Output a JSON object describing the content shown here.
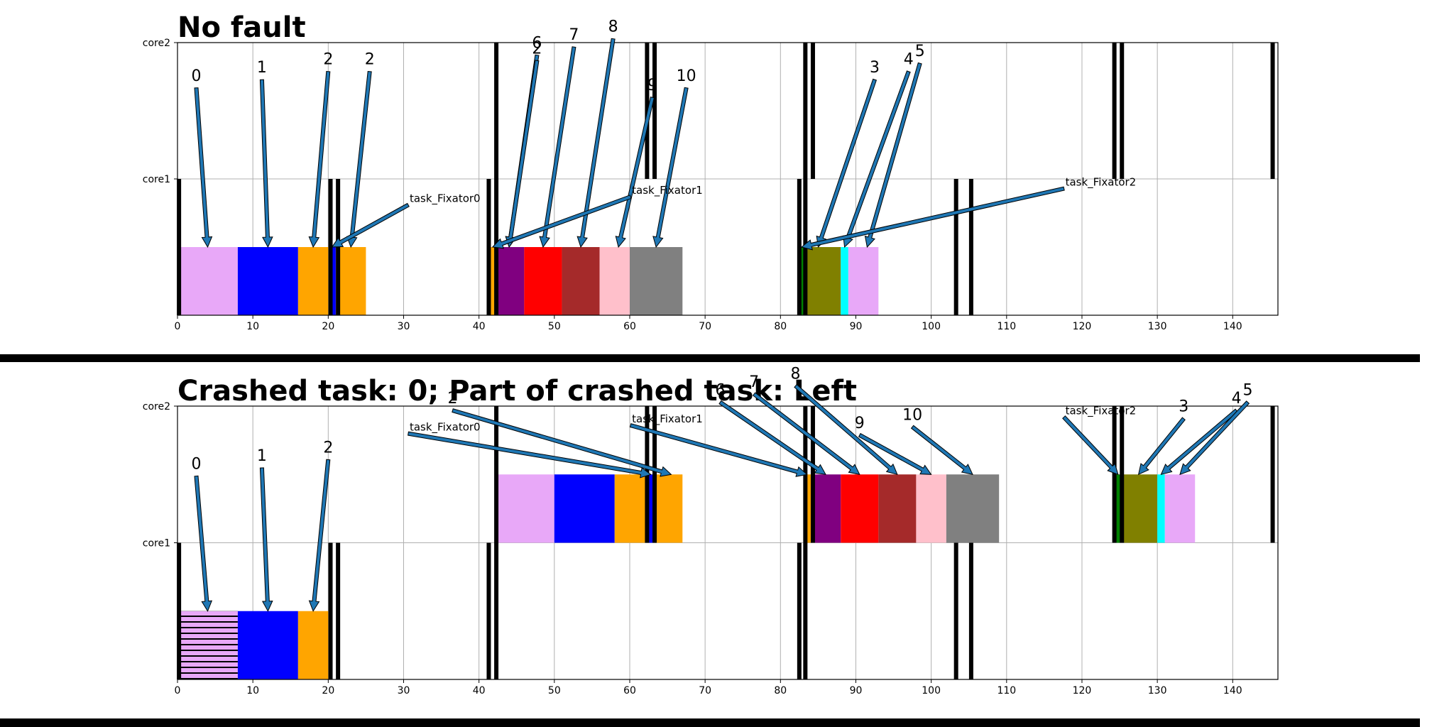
{
  "chart_data": [
    {
      "type": "gantt",
      "title": "No fault",
      "xlim": [
        0,
        146
      ],
      "xticks": [
        0,
        10,
        20,
        30,
        40,
        50,
        60,
        70,
        80,
        90,
        100,
        110,
        120,
        130,
        140
      ],
      "cores": [
        "core1",
        "core2"
      ],
      "grid": true,
      "tasks": [
        {
          "core": 1,
          "start": 0,
          "end": 8,
          "color": "#e8a8f8"
        },
        {
          "core": 1,
          "start": 8,
          "end": 16,
          "color": "#0000ff"
        },
        {
          "core": 1,
          "start": 16,
          "end": 20,
          "color": "#ffa500"
        },
        {
          "core": 1,
          "start": 20.3,
          "end": 21,
          "color": "#0000ff"
        },
        {
          "core": 1,
          "start": 21,
          "end": 25,
          "color": "#ffa500"
        },
        {
          "core": 1,
          "start": 41.5,
          "end": 42.3,
          "color": "#ffa500"
        },
        {
          "core": 1,
          "start": 42.3,
          "end": 46,
          "color": "#800080"
        },
        {
          "core": 1,
          "start": 46,
          "end": 51,
          "color": "#ff0000"
        },
        {
          "core": 1,
          "start": 51,
          "end": 56,
          "color": "#a52a2a"
        },
        {
          "core": 1,
          "start": 56,
          "end": 60,
          "color": "#ffc0cb"
        },
        {
          "core": 1,
          "start": 60,
          "end": 67,
          "color": "#808080"
        },
        {
          "core": 1,
          "start": 82.5,
          "end": 83.3,
          "color": "#008000"
        },
        {
          "core": 1,
          "start": 83.3,
          "end": 88,
          "color": "#808000"
        },
        {
          "core": 1,
          "start": 88,
          "end": 89,
          "color": "#00ffff"
        },
        {
          "core": 1,
          "start": 89,
          "end": 93,
          "color": "#e8a8f8"
        }
      ],
      "markers": [
        {
          "core": 1,
          "x": 0.2
        },
        {
          "core": 1,
          "x": 20.3
        },
        {
          "core": 1,
          "x": 21.3
        },
        {
          "core": 1,
          "x": 41.3
        },
        {
          "core": 1,
          "x": 42.3
        },
        {
          "core": 1,
          "x": 82.5
        },
        {
          "core": 1,
          "x": 83.3
        },
        {
          "core": 1,
          "x": 103.3
        },
        {
          "core": 1,
          "x": 105.3
        },
        {
          "core": 2,
          "x": 42.3
        },
        {
          "core": 2,
          "x": 62.3
        },
        {
          "core": 2,
          "x": 63.3
        },
        {
          "core": 2,
          "x": 83.3
        },
        {
          "core": 2,
          "x": 84.3
        },
        {
          "core": 2,
          "x": 124.3
        },
        {
          "core": 2,
          "x": 125.3
        },
        {
          "core": 2,
          "x": 145.3
        }
      ],
      "annotations": [
        {
          "text": "0",
          "size": "large",
          "tx": 2.5,
          "ty": 1.72,
          "ax": 4,
          "ay": 0.5
        },
        {
          "text": "1",
          "size": "large",
          "tx": 11.2,
          "ty": 1.78,
          "ax": 12,
          "ay": 0.5
        },
        {
          "text": "2",
          "size": "large",
          "tx": 20,
          "ty": 1.84,
          "ax": 18,
          "ay": 0.5
        },
        {
          "text": "2",
          "size": "large",
          "tx": 25.5,
          "ty": 1.84,
          "ax": 23,
          "ay": 0.5
        },
        {
          "text": "task_Fixator0",
          "size": "small",
          "tx": 30.8,
          "ty": 0.83,
          "ax": 20.5,
          "ay": 0.5
        },
        {
          "text": "6",
          "size": "large",
          "tx": 47.7,
          "ty": 1.96,
          "ax": 44,
          "ay": 0.5
        },
        {
          "text": "2",
          "size": "large",
          "tx": 47.7,
          "ty": 1.92,
          "ax": 44,
          "ay": 0.5
        },
        {
          "text": "7",
          "size": "large",
          "tx": 52.6,
          "ty": 2.02,
          "ax": 48.5,
          "ay": 0.5
        },
        {
          "text": "8",
          "size": "large",
          "tx": 57.8,
          "ty": 2.08,
          "ax": 53.5,
          "ay": 0.5
        },
        {
          "text": "9",
          "size": "large",
          "tx": 63,
          "ty": 1.65,
          "ax": 58.5,
          "ay": 0.5
        },
        {
          "text": "10",
          "size": "large",
          "tx": 67.5,
          "ty": 1.72,
          "ax": 63.5,
          "ay": 0.5
        },
        {
          "text": "task_Fixator1",
          "size": "small",
          "tx": 60.3,
          "ty": 0.89,
          "ax": 41.8,
          "ay": 0.5
        },
        {
          "text": "3",
          "size": "large",
          "tx": 92.5,
          "ty": 1.78,
          "ax": 85,
          "ay": 0.5
        },
        {
          "text": "4",
          "size": "large",
          "tx": 97,
          "ty": 1.84,
          "ax": 88.5,
          "ay": 0.5
        },
        {
          "text": "5",
          "size": "large",
          "tx": 98.5,
          "ty": 1.9,
          "ax": 91.5,
          "ay": 0.5
        },
        {
          "text": "task_Fixator2",
          "size": "small",
          "tx": 117.8,
          "ty": 0.95,
          "ax": 82.8,
          "ay": 0.5
        }
      ]
    },
    {
      "type": "gantt",
      "title": "Crashed task: 0; Part of crashed task: Left",
      "xlim": [
        0,
        146
      ],
      "xticks": [
        0,
        10,
        20,
        30,
        40,
        50,
        60,
        70,
        80,
        90,
        100,
        110,
        120,
        130,
        140
      ],
      "cores": [
        "core1",
        "core2"
      ],
      "grid": true,
      "tasks": [
        {
          "core": 1,
          "start": 0,
          "end": 8,
          "color": "#e8a8f8",
          "hatch": true
        },
        {
          "core": 1,
          "start": 8,
          "end": 16,
          "color": "#0000ff"
        },
        {
          "core": 1,
          "start": 16,
          "end": 20,
          "color": "#ffa500"
        },
        {
          "core": 2,
          "start": 42.3,
          "end": 50,
          "color": "#e8a8f8"
        },
        {
          "core": 2,
          "start": 50,
          "end": 58,
          "color": "#0000ff"
        },
        {
          "core": 2,
          "start": 58,
          "end": 62.3,
          "color": "#ffa500"
        },
        {
          "core": 2,
          "start": 62.3,
          "end": 63.3,
          "color": "#0000ff"
        },
        {
          "core": 2,
          "start": 63.3,
          "end": 67,
          "color": "#ffa500"
        },
        {
          "core": 2,
          "start": 83.3,
          "end": 84.3,
          "color": "#ffa500"
        },
        {
          "core": 2,
          "start": 84.3,
          "end": 88,
          "color": "#800080"
        },
        {
          "core": 2,
          "start": 88,
          "end": 93,
          "color": "#ff0000"
        },
        {
          "core": 2,
          "start": 93,
          "end": 98,
          "color": "#a52a2a"
        },
        {
          "core": 2,
          "start": 98,
          "end": 102,
          "color": "#ffc0cb"
        },
        {
          "core": 2,
          "start": 102,
          "end": 109,
          "color": "#808080"
        },
        {
          "core": 2,
          "start": 124.3,
          "end": 125.3,
          "color": "#008000"
        },
        {
          "core": 2,
          "start": 125.3,
          "end": 130,
          "color": "#808000"
        },
        {
          "core": 2,
          "start": 130,
          "end": 131,
          "color": "#00ffff"
        },
        {
          "core": 2,
          "start": 131,
          "end": 135,
          "color": "#e8a8f8"
        }
      ],
      "markers": [
        {
          "core": 1,
          "x": 0.2
        },
        {
          "core": 1,
          "x": 20.3
        },
        {
          "core": 1,
          "x": 21.3
        },
        {
          "core": 1,
          "x": 41.3
        },
        {
          "core": 1,
          "x": 42.3
        },
        {
          "core": 1,
          "x": 82.5
        },
        {
          "core": 1,
          "x": 83.3
        },
        {
          "core": 1,
          "x": 103.3
        },
        {
          "core": 1,
          "x": 105.3
        },
        {
          "core": 2,
          "x": 42.3
        },
        {
          "core": 2,
          "x": 62.3
        },
        {
          "core": 2,
          "x": 63.3
        },
        {
          "core": 2,
          "x": 83.3
        },
        {
          "core": 2,
          "x": 84.3
        },
        {
          "core": 2,
          "x": 124.3
        },
        {
          "core": 2,
          "x": 125.3
        },
        {
          "core": 2,
          "x": 145.3
        }
      ],
      "annotations": [
        {
          "text": "0",
          "size": "large",
          "tx": 2.5,
          "ty": 1.54,
          "ax": 4,
          "ay": 0.5
        },
        {
          "text": "1",
          "size": "large",
          "tx": 11.2,
          "ty": 1.6,
          "ax": 12,
          "ay": 0.5
        },
        {
          "text": "2",
          "size": "large",
          "tx": 20,
          "ty": 1.66,
          "ax": 18,
          "ay": 0.5
        },
        {
          "text": "2",
          "size": "large",
          "tx": 36.5,
          "ty": 2.02,
          "ax": 65.5,
          "ay": 1.5
        },
        {
          "text": "task_Fixator0",
          "size": "small",
          "tx": 30.8,
          "ty": 1.82,
          "ax": 62.8,
          "ay": 1.5
        },
        {
          "text": "6",
          "size": "large",
          "tx": 72,
          "ty": 2.08,
          "ax": 86,
          "ay": 1.5
        },
        {
          "text": "7",
          "size": "large",
          "tx": 76.5,
          "ty": 2.14,
          "ax": 90.5,
          "ay": 1.5
        },
        {
          "text": "8",
          "size": "large",
          "tx": 82,
          "ty": 2.2,
          "ax": 95.5,
          "ay": 1.5
        },
        {
          "text": "9",
          "size": "large",
          "tx": 90.5,
          "ty": 1.84,
          "ax": 100,
          "ay": 1.5
        },
        {
          "text": "10",
          "size": "large",
          "tx": 97.5,
          "ty": 1.9,
          "ax": 105.5,
          "ay": 1.5
        },
        {
          "text": "task_Fixator1",
          "size": "small",
          "tx": 60.3,
          "ty": 1.88,
          "ax": 83.5,
          "ay": 1.5
        },
        {
          "text": "task_Fixator2",
          "size": "small",
          "tx": 117.8,
          "ty": 1.94,
          "ax": 124.8,
          "ay": 1.5
        },
        {
          "text": "3",
          "size": "large",
          "tx": 133.5,
          "ty": 1.96,
          "ax": 127.5,
          "ay": 1.5
        },
        {
          "text": "4",
          "size": "large",
          "tx": 140.5,
          "ty": 2.02,
          "ax": 130.5,
          "ay": 1.5
        },
        {
          "text": "5",
          "size": "large",
          "tx": 142,
          "ty": 2.08,
          "ax": 133,
          "ay": 1.5
        }
      ]
    }
  ]
}
